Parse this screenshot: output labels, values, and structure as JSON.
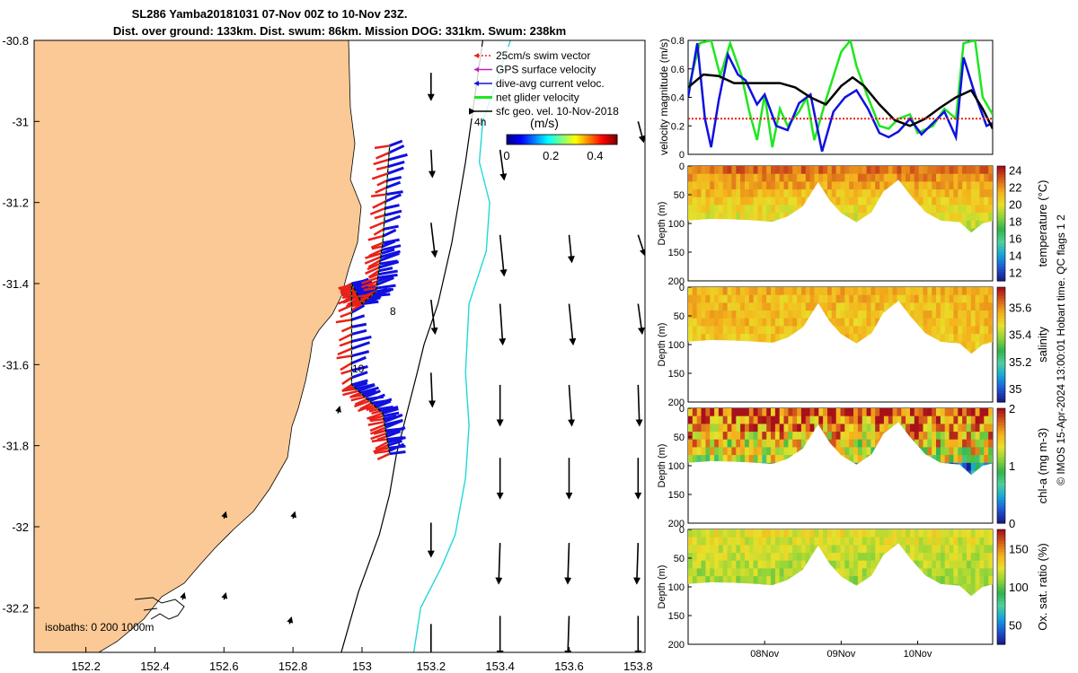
{
  "title_line1": "SL286 Yamba20181031 07-Nov 00Z to 10-Nov 23Z.",
  "title_line2": "Dist. over ground: 133km. Dist. swum: 86km. Mission DOG: 331km. Swum: 238km",
  "side_text": "© IMOS 15-Apr-2024 13:00:01 Hobart time. QC flags 1  2",
  "colors": {
    "land": "#fbc995",
    "swim_vector": "#e8211a",
    "gps_velocity": "#c020c0",
    "dive_avg": "#1010e0",
    "net_glider": "#1fe61f",
    "geo_vel": "#000000",
    "isobath_200": "#000000",
    "isobath_1000": "#22d8d8"
  },
  "chart_data": [
    {
      "type": "map",
      "name": "glider track map",
      "xlabel": "",
      "ylabel": "",
      "xlim": [
        152.05,
        153.82
      ],
      "ylim": [
        -32.31,
        -30.8
      ],
      "x_ticks": [
        "152.2",
        "152.4",
        "152.6",
        "152.8",
        "153",
        "153.2",
        "153.4",
        "153.6",
        "153.8"
      ],
      "x_tick_values": [
        152.2,
        152.4,
        152.6,
        152.8,
        153.0,
        153.2,
        153.4,
        153.6,
        153.8
      ],
      "y_ticks": [
        "-30.8",
        "-31",
        "-31.2",
        "-31.4",
        "-31.6",
        "-31.8",
        "-32",
        "-32.2"
      ],
      "y_tick_values": [
        -30.8,
        -31.0,
        -31.2,
        -31.4,
        -31.6,
        -31.8,
        -32.0,
        -32.2
      ],
      "legend": [
        {
          "label": "25cm/s swim vector",
          "color": "#e8211a"
        },
        {
          "label": "GPS surface velocity",
          "color": "#c020c0"
        },
        {
          "label": "dive-avg current veloc.",
          "color": "#1010e0"
        },
        {
          "label": "net glider velocity",
          "color": "#1fe61f"
        },
        {
          "label": "sfc geo. vel. 10-Nov-2018",
          "color": "#000000"
        }
      ],
      "legend_position": "top-right",
      "colorbar": {
        "label": "(m/s)",
        "ticks": [
          "0",
          "0.2",
          "0.4"
        ],
        "range": [
          0,
          0.5
        ]
      },
      "isobath_label": "isobaths: 0   200  1000m",
      "track_labels": [
        "4h",
        "8",
        "10"
      ],
      "glider_track": {
        "lon": [
          153.08,
          153.06,
          153.04,
          153.0,
          152.97,
          152.97,
          153.06,
          153.08
        ],
        "lat": [
          -31.06,
          -31.3,
          -31.42,
          -31.45,
          -31.4,
          -31.65,
          -31.72,
          -31.82
        ]
      },
      "isobath_200": {
        "lon": [
          153.35,
          153.3,
          153.26,
          153.22,
          153.18,
          153.16,
          153.13,
          153.1,
          153.08,
          153.05,
          152.99,
          152.94
        ],
        "lat": [
          -30.8,
          -31.1,
          -31.3,
          -31.45,
          -31.55,
          -31.62,
          -31.72,
          -31.82,
          -31.92,
          -32.02,
          -32.16,
          -32.31
        ]
      },
      "isobath_1000": {
        "lon": [
          153.43,
          153.35,
          153.34,
          153.37,
          153.36,
          153.31,
          153.3,
          153.31,
          153.3,
          153.27,
          153.23,
          153.17,
          153.15
        ],
        "lat": [
          -30.8,
          -31.0,
          -31.1,
          -31.2,
          -31.32,
          -31.45,
          -31.62,
          -31.75,
          -31.88,
          -32.02,
          -32.1,
          -32.2,
          -32.31
        ]
      },
      "geo_vectors": {
        "lon": [
          153.2,
          153.2,
          153.2,
          153.2,
          153.2,
          153.2,
          153.2,
          153.4,
          153.4,
          153.4,
          153.4,
          153.4,
          153.4,
          153.4,
          153.6,
          153.6,
          153.6,
          153.6,
          153.6,
          153.6,
          153.6,
          153.8,
          153.8,
          153.8,
          153.8,
          153.8,
          153.8,
          153.8,
          153.8
        ],
        "lat": [
          -30.88,
          -31.07,
          -31.25,
          -31.44,
          -31.62,
          -31.99,
          -32.24,
          -31.07,
          -31.28,
          -31.45,
          -31.65,
          -31.83,
          -32.04,
          -32.22,
          -31.28,
          -31.45,
          -31.65,
          -31.83,
          -32.04,
          -32.22,
          -32.3,
          -31.0,
          -31.28,
          -31.45,
          -31.65,
          -31.83,
          -32.04,
          -32.22,
          -32.3
        ],
        "u": [
          0,
          0.01,
          0.03,
          0.03,
          0.01,
          0,
          0,
          0.03,
          0.03,
          0.02,
          0,
          0,
          -0.01,
          0,
          0.02,
          0.03,
          0.02,
          0,
          -0.01,
          -0.01,
          0,
          0.04,
          0.05,
          0.03,
          0.01,
          0,
          -0.01,
          0,
          0
        ],
        "v": [
          -0.2,
          -0.2,
          -0.25,
          -0.25,
          -0.25,
          -0.25,
          -0.25,
          -0.22,
          -0.3,
          -0.3,
          -0.3,
          -0.3,
          -0.3,
          -0.3,
          -0.2,
          -0.3,
          -0.3,
          -0.3,
          -0.3,
          -0.3,
          -0.2,
          -0.15,
          -0.15,
          -0.22,
          -0.3,
          -0.3,
          -0.3,
          -0.3,
          -0.2
        ]
      }
    },
    {
      "type": "line",
      "name": "velocity magnitude",
      "ylabel": "velocity magnitude (m/s)",
      "xlabel": "",
      "ylim": [
        0,
        0.8
      ],
      "y_ticks": [
        "0",
        "0.2",
        "0.4",
        "0.6",
        "0.8"
      ],
      "y_tick_values": [
        0,
        0.2,
        0.4,
        0.6,
        0.8
      ],
      "xlim": [
        7.0,
        10.98
      ],
      "series": [
        {
          "name": "net glider velocity",
          "color": "#1fe61f",
          "x": [
            7.0,
            7.15,
            7.3,
            7.42,
            7.55,
            7.7,
            7.8,
            7.9,
            8.0,
            8.1,
            8.2,
            8.3,
            8.45,
            8.55,
            8.65,
            8.8,
            9.0,
            9.12,
            9.2,
            9.35,
            9.5,
            9.62,
            9.75,
            9.9,
            10.0,
            10.2,
            10.35,
            10.5,
            10.6,
            10.75,
            10.85,
            10.98
          ],
          "y": [
            0.45,
            0.78,
            0.8,
            0.55,
            0.78,
            0.55,
            0.3,
            0.1,
            0.42,
            0.05,
            0.32,
            0.2,
            0.3,
            0.4,
            0.1,
            0.38,
            0.72,
            0.8,
            0.62,
            0.4,
            0.2,
            0.18,
            0.25,
            0.28,
            0.15,
            0.2,
            0.32,
            0.25,
            0.78,
            0.8,
            0.4,
            0.28
          ]
        },
        {
          "name": "dive-avg current veloc.",
          "color": "#1010e0",
          "x": [
            7.0,
            7.12,
            7.22,
            7.3,
            7.4,
            7.52,
            7.65,
            7.75,
            7.9,
            8.0,
            8.15,
            8.3,
            8.45,
            8.6,
            8.75,
            8.9,
            9.05,
            9.2,
            9.35,
            9.5,
            9.62,
            9.75,
            9.9,
            10.05,
            10.2,
            10.35,
            10.5,
            10.6,
            10.75,
            10.9,
            10.98
          ],
          "y": [
            0.4,
            0.78,
            0.25,
            0.05,
            0.38,
            0.7,
            0.56,
            0.52,
            0.35,
            0.42,
            0.2,
            0.17,
            0.36,
            0.42,
            0.02,
            0.3,
            0.4,
            0.45,
            0.32,
            0.15,
            0.12,
            0.16,
            0.25,
            0.14,
            0.22,
            0.3,
            0.12,
            0.68,
            0.42,
            0.2,
            0.22
          ]
        },
        {
          "name": "sfc geo. vel.",
          "color": "#000000",
          "x": [
            7.0,
            7.2,
            7.4,
            7.6,
            7.8,
            8.0,
            8.2,
            8.4,
            8.6,
            8.8,
            9.0,
            9.15,
            9.3,
            9.5,
            9.7,
            9.9,
            10.1,
            10.3,
            10.5,
            10.7,
            10.85,
            10.98
          ],
          "y": [
            0.47,
            0.56,
            0.55,
            0.5,
            0.5,
            0.5,
            0.5,
            0.47,
            0.4,
            0.35,
            0.48,
            0.54,
            0.48,
            0.35,
            0.24,
            0.2,
            0.25,
            0.33,
            0.4,
            0.45,
            0.32,
            0.18
          ]
        },
        {
          "name": "25cm/s swim vector",
          "color": "#e8211a",
          "style": "dotted",
          "x": [
            7.0,
            10.98
          ],
          "y": [
            0.25,
            0.25
          ]
        }
      ]
    },
    {
      "type": "heatmap",
      "name": "temperature section",
      "ylabel": "Depth (m)",
      "colorbar_label": "temperature (°C)",
      "colorbar_ticks": [
        "24",
        "22",
        "20",
        "18",
        "16",
        "14",
        "12"
      ],
      "colorbar_range": [
        11,
        24.5
      ],
      "ylim": [
        200,
        0
      ],
      "y_ticks": [
        "0",
        "50",
        "100",
        "150",
        "200"
      ],
      "y_tick_values": [
        0,
        50,
        100,
        150,
        200
      ],
      "xlim": [
        7.0,
        10.98
      ],
      "colorscale": [
        "#1a1f8e",
        "#1e5ad8",
        "#15a8d8",
        "#4fcf9c",
        "#2fb34a",
        "#8fd43a",
        "#e8e02a",
        "#f4b21c",
        "#d8621a",
        "#a8101a"
      ],
      "surface_value": 22.8,
      "deep_value": 17.5,
      "bottom_profile": {
        "x": [
          7.0,
          7.3,
          7.6,
          7.9,
          8.1,
          8.3,
          8.5,
          8.7,
          8.85,
          9.0,
          9.2,
          9.4,
          9.55,
          9.75,
          9.9,
          10.1,
          10.3,
          10.55,
          10.7,
          10.85,
          10.98
        ],
        "depth": [
          95,
          92,
          93,
          95,
          97,
          88,
          70,
          28,
          60,
          82,
          98,
          80,
          45,
          24,
          50,
          80,
          95,
          98,
          116,
          100,
          96
        ]
      }
    },
    {
      "type": "heatmap",
      "name": "salinity section",
      "ylabel": "Depth (m)",
      "colorbar_label": "salinity",
      "colorbar_ticks": [
        "35.6",
        "35.4",
        "35.2",
        "35"
      ],
      "colorbar_range": [
        34.9,
        35.75
      ],
      "ylim": [
        200,
        0
      ],
      "y_ticks": [
        "0",
        "50",
        "100",
        "150",
        "200"
      ],
      "y_tick_values": [
        0,
        50,
        100,
        150,
        200
      ],
      "xlim": [
        7.0,
        10.98
      ],
      "colorscale": [
        "#1a1f8e",
        "#1e5ad8",
        "#15a8d8",
        "#4fcf9c",
        "#2fb34a",
        "#8fd43a",
        "#e8e02a",
        "#f4b21c",
        "#d8621a",
        "#a8101a"
      ],
      "surface_value": 35.55,
      "deep_value": 35.5,
      "bottom_profile": {
        "x": [
          7.0,
          7.3,
          7.6,
          7.9,
          8.1,
          8.3,
          8.5,
          8.7,
          8.85,
          9.0,
          9.2,
          9.4,
          9.55,
          9.75,
          9.9,
          10.1,
          10.3,
          10.55,
          10.7,
          10.85,
          10.98
        ],
        "depth": [
          95,
          92,
          93,
          95,
          97,
          88,
          70,
          28,
          60,
          82,
          98,
          80,
          45,
          24,
          50,
          80,
          95,
          98,
          116,
          100,
          96
        ]
      }
    },
    {
      "type": "heatmap",
      "name": "chlorophyll section",
      "ylabel": "Depth (m)",
      "colorbar_label": "chl-a (mg m-3)",
      "colorbar_ticks": [
        "2",
        "1",
        "0"
      ],
      "colorbar_range": [
        0,
        2
      ],
      "ylim": [
        200,
        0
      ],
      "y_ticks": [
        "0",
        "50",
        "100",
        "150",
        "200"
      ],
      "y_tick_values": [
        0,
        50,
        100,
        150,
        200
      ],
      "xlim": [
        7.0,
        10.98
      ],
      "colorscale": [
        "#1a1f8e",
        "#1e5ad8",
        "#15a8d8",
        "#4fcf9c",
        "#2fb34a",
        "#8fd43a",
        "#e8e02a",
        "#f4b21c",
        "#d8621a",
        "#a8101a"
      ],
      "surface_value": 1.9,
      "deep_value": 0.6,
      "bottom_profile": {
        "x": [
          7.0,
          7.3,
          7.6,
          7.9,
          8.1,
          8.3,
          8.5,
          8.7,
          8.85,
          9.0,
          9.2,
          9.4,
          9.55,
          9.75,
          9.9,
          10.1,
          10.3,
          10.55,
          10.7,
          10.85,
          10.98
        ],
        "depth": [
          95,
          92,
          93,
          95,
          97,
          88,
          70,
          28,
          60,
          82,
          98,
          80,
          45,
          24,
          50,
          80,
          95,
          98,
          116,
          100,
          96
        ]
      }
    },
    {
      "type": "heatmap",
      "name": "oxygen saturation section",
      "ylabel": "Depth (m)",
      "colorbar_label": "Ox. sat. ratio (%)",
      "colorbar_ticks": [
        "150",
        "100",
        "50"
      ],
      "colorbar_range": [
        25,
        175
      ],
      "ylim": [
        200,
        0
      ],
      "y_ticks": [
        "0",
        "50",
        "100",
        "150",
        "200"
      ],
      "y_tick_values": [
        0,
        50,
        100,
        150,
        200
      ],
      "xlim": [
        7.0,
        10.98
      ],
      "x_ticks": [
        "08Nov",
        "09Nov",
        "10Nov"
      ],
      "x_tick_values": [
        8.0,
        9.0,
        10.0
      ],
      "colorscale": [
        "#1a1f8e",
        "#1e5ad8",
        "#15a8d8",
        "#4fcf9c",
        "#2fb34a",
        "#8fd43a",
        "#e8e02a",
        "#f4b21c",
        "#d8621a",
        "#a8101a"
      ],
      "surface_value": 125,
      "deep_value": 102,
      "bottom_profile": {
        "x": [
          7.0,
          7.3,
          7.6,
          7.9,
          8.1,
          8.3,
          8.5,
          8.7,
          8.85,
          9.0,
          9.2,
          9.4,
          9.55,
          9.75,
          9.9,
          10.1,
          10.3,
          10.55,
          10.7,
          10.85,
          10.98
        ],
        "depth": [
          95,
          92,
          93,
          95,
          97,
          88,
          70,
          28,
          60,
          82,
          98,
          80,
          45,
          24,
          50,
          80,
          95,
          98,
          116,
          100,
          96
        ]
      }
    }
  ]
}
